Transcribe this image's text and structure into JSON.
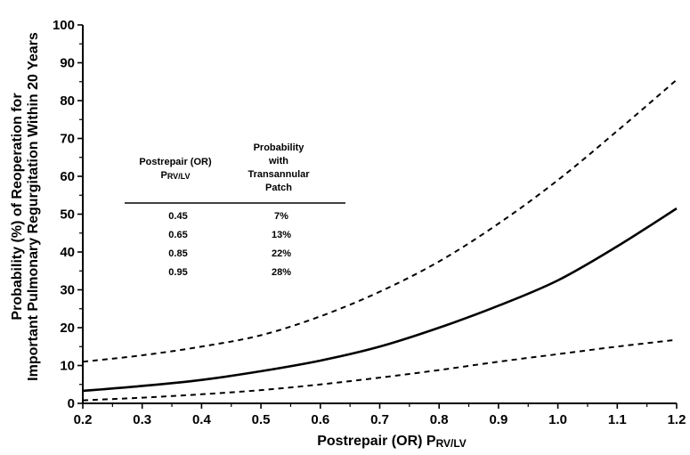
{
  "chart_data": {
    "type": "line",
    "xlabel": "Postrepair (OR) P",
    "xlabel_sub": "RV/LV",
    "ylabel_lines": [
      "Probability (%) of Reoperation for",
      "Important Pulmonary Regurgitation Within 20 Years"
    ],
    "xlim": [
      0.2,
      1.2
    ],
    "ylim": [
      0,
      100
    ],
    "x_ticks": [
      "0.2",
      "0.3",
      "0.4",
      "0.5",
      "0.6",
      "0.7",
      "0.8",
      "0.9",
      "1.0",
      "1.1",
      "1.2"
    ],
    "y_ticks": [
      "0",
      "10",
      "20",
      "30",
      "40",
      "50",
      "60",
      "70",
      "80",
      "90",
      "100"
    ],
    "grid": false,
    "legend": "none",
    "series": [
      {
        "style": "solid",
        "x": [
          0.2,
          0.3,
          0.4,
          0.5,
          0.6,
          0.7,
          0.8,
          0.9,
          1.0,
          1.1,
          1.2
        ],
        "y": [
          3.3,
          4.6,
          6.2,
          8.5,
          11.3,
          15,
          20,
          25.8,
          32.5,
          41.5,
          51.5
        ]
      },
      {
        "style": "dashed",
        "x": [
          0.2,
          0.3,
          0.4,
          0.5,
          0.6,
          0.7,
          0.8,
          0.9,
          1.0,
          1.1,
          1.2
        ],
        "y": [
          11,
          12.7,
          15,
          18,
          23,
          29.5,
          37.5,
          47.5,
          59,
          72,
          85.5
        ]
      },
      {
        "style": "dashed",
        "x": [
          0.2,
          0.3,
          0.4,
          0.5,
          0.6,
          0.7,
          0.8,
          0.9,
          1.0,
          1.1,
          1.2
        ],
        "y": [
          0.8,
          1.5,
          2.4,
          3.5,
          5,
          6.8,
          8.8,
          11,
          13,
          15,
          16.8
        ]
      }
    ],
    "inset_table": {
      "headers": [
        [
          "Postrepair (OR)",
          "P",
          "RV/LV"
        ],
        [
          "Probability",
          "with",
          "Transannular",
          "Patch"
        ]
      ],
      "rows": [
        [
          "0.45",
          "7%"
        ],
        [
          "0.65",
          "13%"
        ],
        [
          "0.85",
          "22%"
        ],
        [
          "0.95",
          "28%"
        ]
      ]
    }
  }
}
